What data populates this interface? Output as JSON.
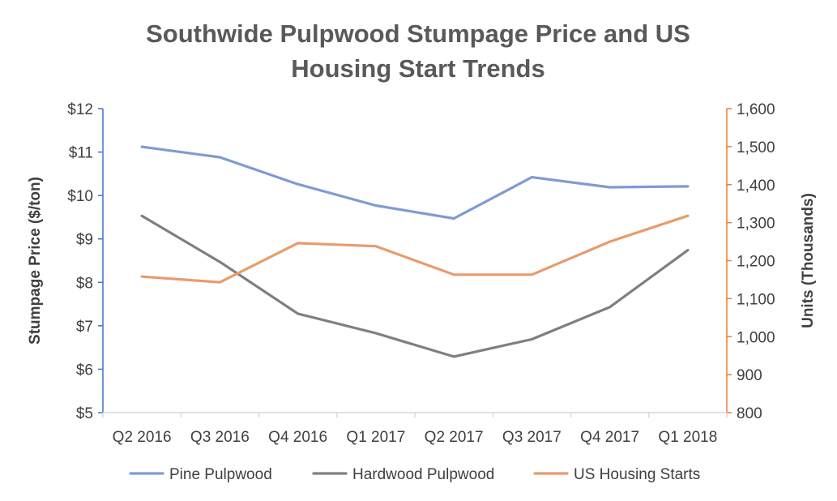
{
  "chart_data": {
    "type": "line",
    "title": "Southwide Pulpwood Stumpage Price and US Housing Start Trends",
    "title_lines": [
      "Southwide Pulpwood Stumpage Price and US",
      "Housing Start Trends"
    ],
    "categories": [
      "Q2 2016",
      "Q3 2016",
      "Q4 2016",
      "Q1 2017",
      "Q2 2017",
      "Q3 2017",
      "Q4 2017",
      "Q1 2018"
    ],
    "y_left": {
      "label": "Stumpage Price ($/ton)",
      "min": 5,
      "max": 12,
      "step": 1,
      "ticks": [
        "$5",
        "$6",
        "$7",
        "$8",
        "$9",
        "$10",
        "$11",
        "$12"
      ],
      "color": "#4472c4"
    },
    "y_right": {
      "label": "Units (Thousands)",
      "min": 800,
      "max": 1600,
      "step": 100,
      "ticks": [
        "800",
        "900",
        "1,000",
        "1,100",
        "1,200",
        "1,300",
        "1,400",
        "1,500",
        "1,600"
      ],
      "color": "#ed7d31"
    },
    "series": [
      {
        "name": "Pine Pulpwood",
        "axis": "left",
        "color": "#7f9bd3",
        "values": [
          11.12,
          10.88,
          10.26,
          9.77,
          9.47,
          10.42,
          10.19,
          10.21
        ]
      },
      {
        "name": "Hardwood Pulpwood",
        "axis": "left",
        "color": "#7f7f7f",
        "values": [
          9.53,
          8.47,
          7.28,
          6.83,
          6.29,
          6.69,
          7.43,
          8.74
        ]
      },
      {
        "name": "US Housing Starts",
        "axis": "right",
        "color": "#e99b6d",
        "values": [
          1158,
          1143,
          1246,
          1238,
          1163,
          1163,
          1250,
          1318
        ]
      }
    ],
    "legend_position": "bottom",
    "grid": false
  }
}
